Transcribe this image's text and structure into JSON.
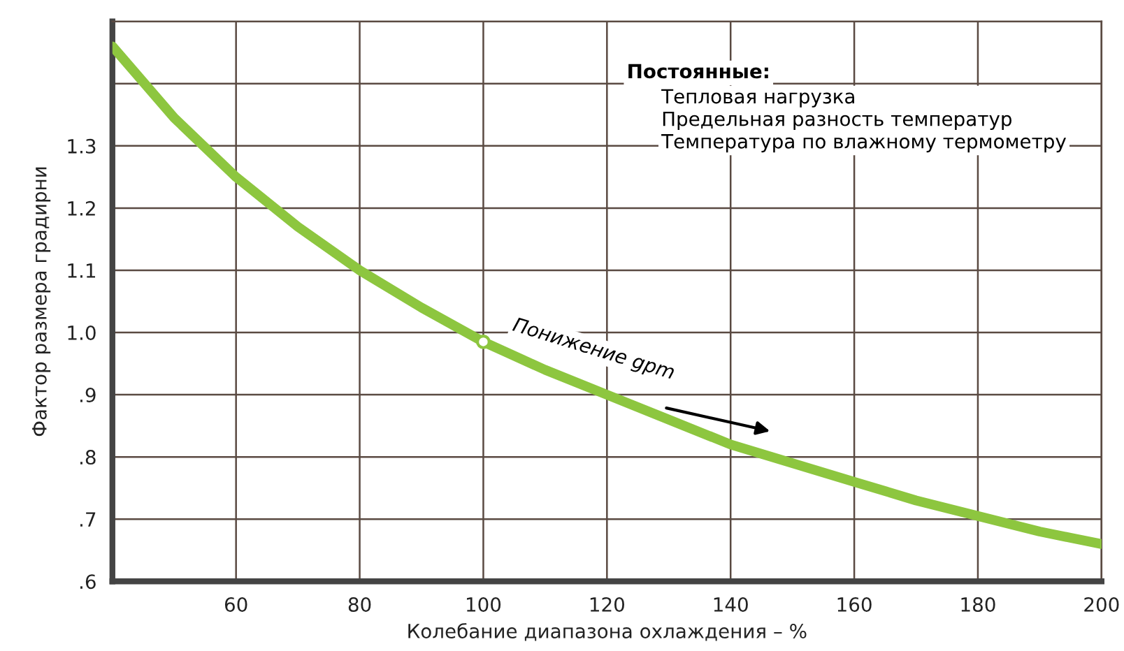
{
  "chart_data": {
    "type": "line",
    "xlabel": "Колебание диапазона охлаждения – %",
    "ylabel": "Фактор размера градирни",
    "x": [
      40,
      50,
      60,
      70,
      80,
      90,
      100,
      110,
      120,
      130,
      140,
      150,
      160,
      170,
      180,
      190,
      200
    ],
    "series": [
      {
        "color": "#8dc63f",
        "values": [
          1.46,
          1.345,
          1.25,
          1.17,
          1.1,
          1.04,
          0.985,
          0.94,
          0.9,
          0.86,
          0.82,
          0.79,
          0.76,
          0.73,
          0.705,
          0.68,
          0.66
        ]
      }
    ],
    "xlim": [
      40,
      200
    ],
    "ylim": [
      0.6,
      1.5
    ],
    "xticks": [
      {
        "value": 40,
        "label": null
      },
      60,
      80,
      100,
      120,
      140,
      160,
      180,
      200
    ],
    "yticks": [
      {
        "value": 0.6,
        "label": ".6"
      },
      {
        "value": 0.7,
        "label": ".7"
      },
      {
        "value": 0.8,
        "label": ".8"
      },
      {
        "value": 0.9,
        "label": ".9"
      },
      {
        "value": 1.0,
        "label": "1.0"
      },
      1.1,
      1.2,
      1.3,
      {
        "value": 1.4,
        "label": null
      }
    ],
    "grid": true,
    "annotations": [
      {
        "text": "Понижение gpm",
        "x": 100,
        "y": 0.985
      },
      "Постоянные:",
      "Тепловая нагрузка\nПредельная разность температур\nТемпература по влажному термометру"
    ]
  }
}
